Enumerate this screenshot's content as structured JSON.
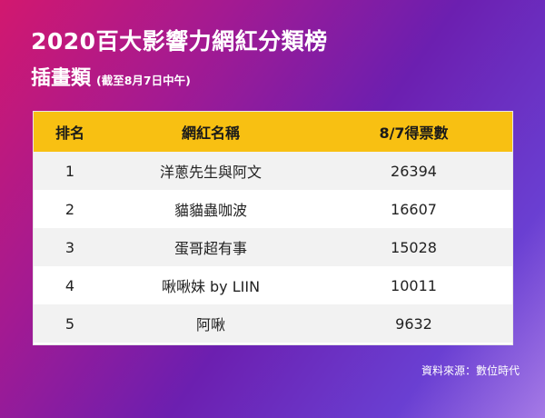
{
  "header": {
    "title": "2020百大影響力網紅分類榜",
    "subtitle": "插畫類",
    "note": "(截至8月7日中午)"
  },
  "table": {
    "columns": [
      "排名",
      "網紅名稱",
      "8/7得票數"
    ],
    "rows": [
      {
        "rank": "1",
        "name": "洋蔥先生與阿文",
        "votes": "26394"
      },
      {
        "rank": "2",
        "name": "貓貓蟲咖波",
        "votes": "16607"
      },
      {
        "rank": "3",
        "name": "蛋哥超有事",
        "votes": "15028"
      },
      {
        "rank": "4",
        "name": "啾啾妹 by LIIN",
        "votes": "10011"
      },
      {
        "rank": "5",
        "name": "阿啾",
        "votes": "9632"
      }
    ]
  },
  "source": "資料來源：數位時代",
  "colors": {
    "header_row": "#f8c012",
    "stripe": "#f2f2f2",
    "gradient_start": "#d2186f",
    "gradient_end": "#a57ae6"
  }
}
